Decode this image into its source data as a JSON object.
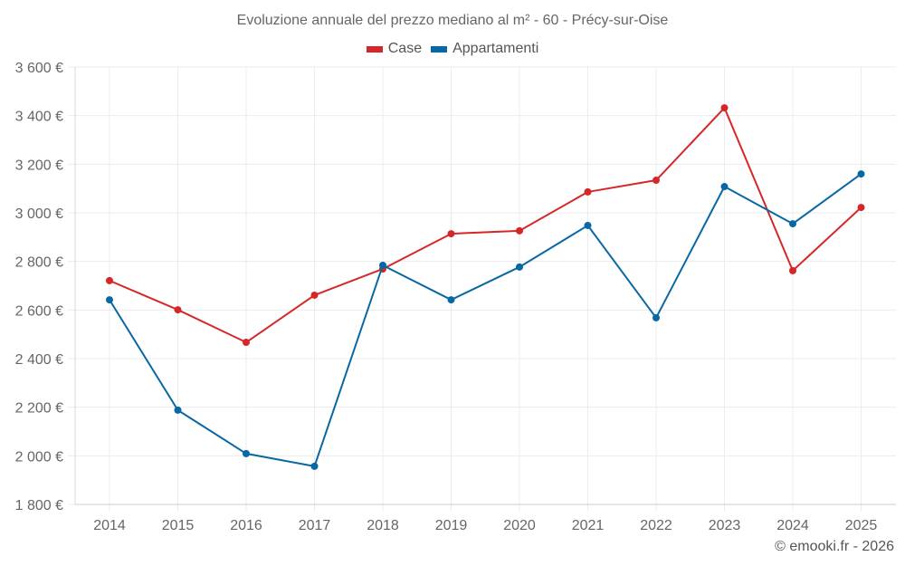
{
  "chart_data": {
    "type": "line",
    "title": "Evoluzione annuale del prezzo mediano al m² - 60 - Précy-sur-Oise",
    "xlabel": "",
    "ylabel": "",
    "x": [
      "2014",
      "2015",
      "2016",
      "2017",
      "2018",
      "2019",
      "2020",
      "2021",
      "2022",
      "2023",
      "2024",
      "2025"
    ],
    "ylim": [
      1800,
      3600
    ],
    "yticks": [
      1800,
      2000,
      2200,
      2400,
      2600,
      2800,
      3000,
      3200,
      3400,
      3600
    ],
    "ytick_labels": [
      "1 800 €",
      "2 000 €",
      "2 200 €",
      "2 400 €",
      "2 600 €",
      "2 800 €",
      "3 000 €",
      "3 200 €",
      "3 400 €",
      "3 600 €"
    ],
    "grid": true,
    "legend_position": "top-center",
    "series": [
      {
        "name": "Case",
        "color": "#d62728",
        "values": [
          2721,
          2601,
          2467,
          2661,
          2769,
          2914,
          2926,
          3086,
          3134,
          3432,
          2762,
          3022
        ]
      },
      {
        "name": "Appartamenti",
        "color": "#0868a3",
        "values": [
          2642,
          2188,
          2009,
          1957,
          2784,
          2642,
          2777,
          2948,
          2568,
          3108,
          2955,
          3160
        ]
      }
    ]
  },
  "legend": {
    "items": [
      {
        "label": "Case",
        "color": "#d62728"
      },
      {
        "label": "Appartamenti",
        "color": "#0868a3"
      }
    ]
  },
  "credit": "© emooki.fr - 2026"
}
